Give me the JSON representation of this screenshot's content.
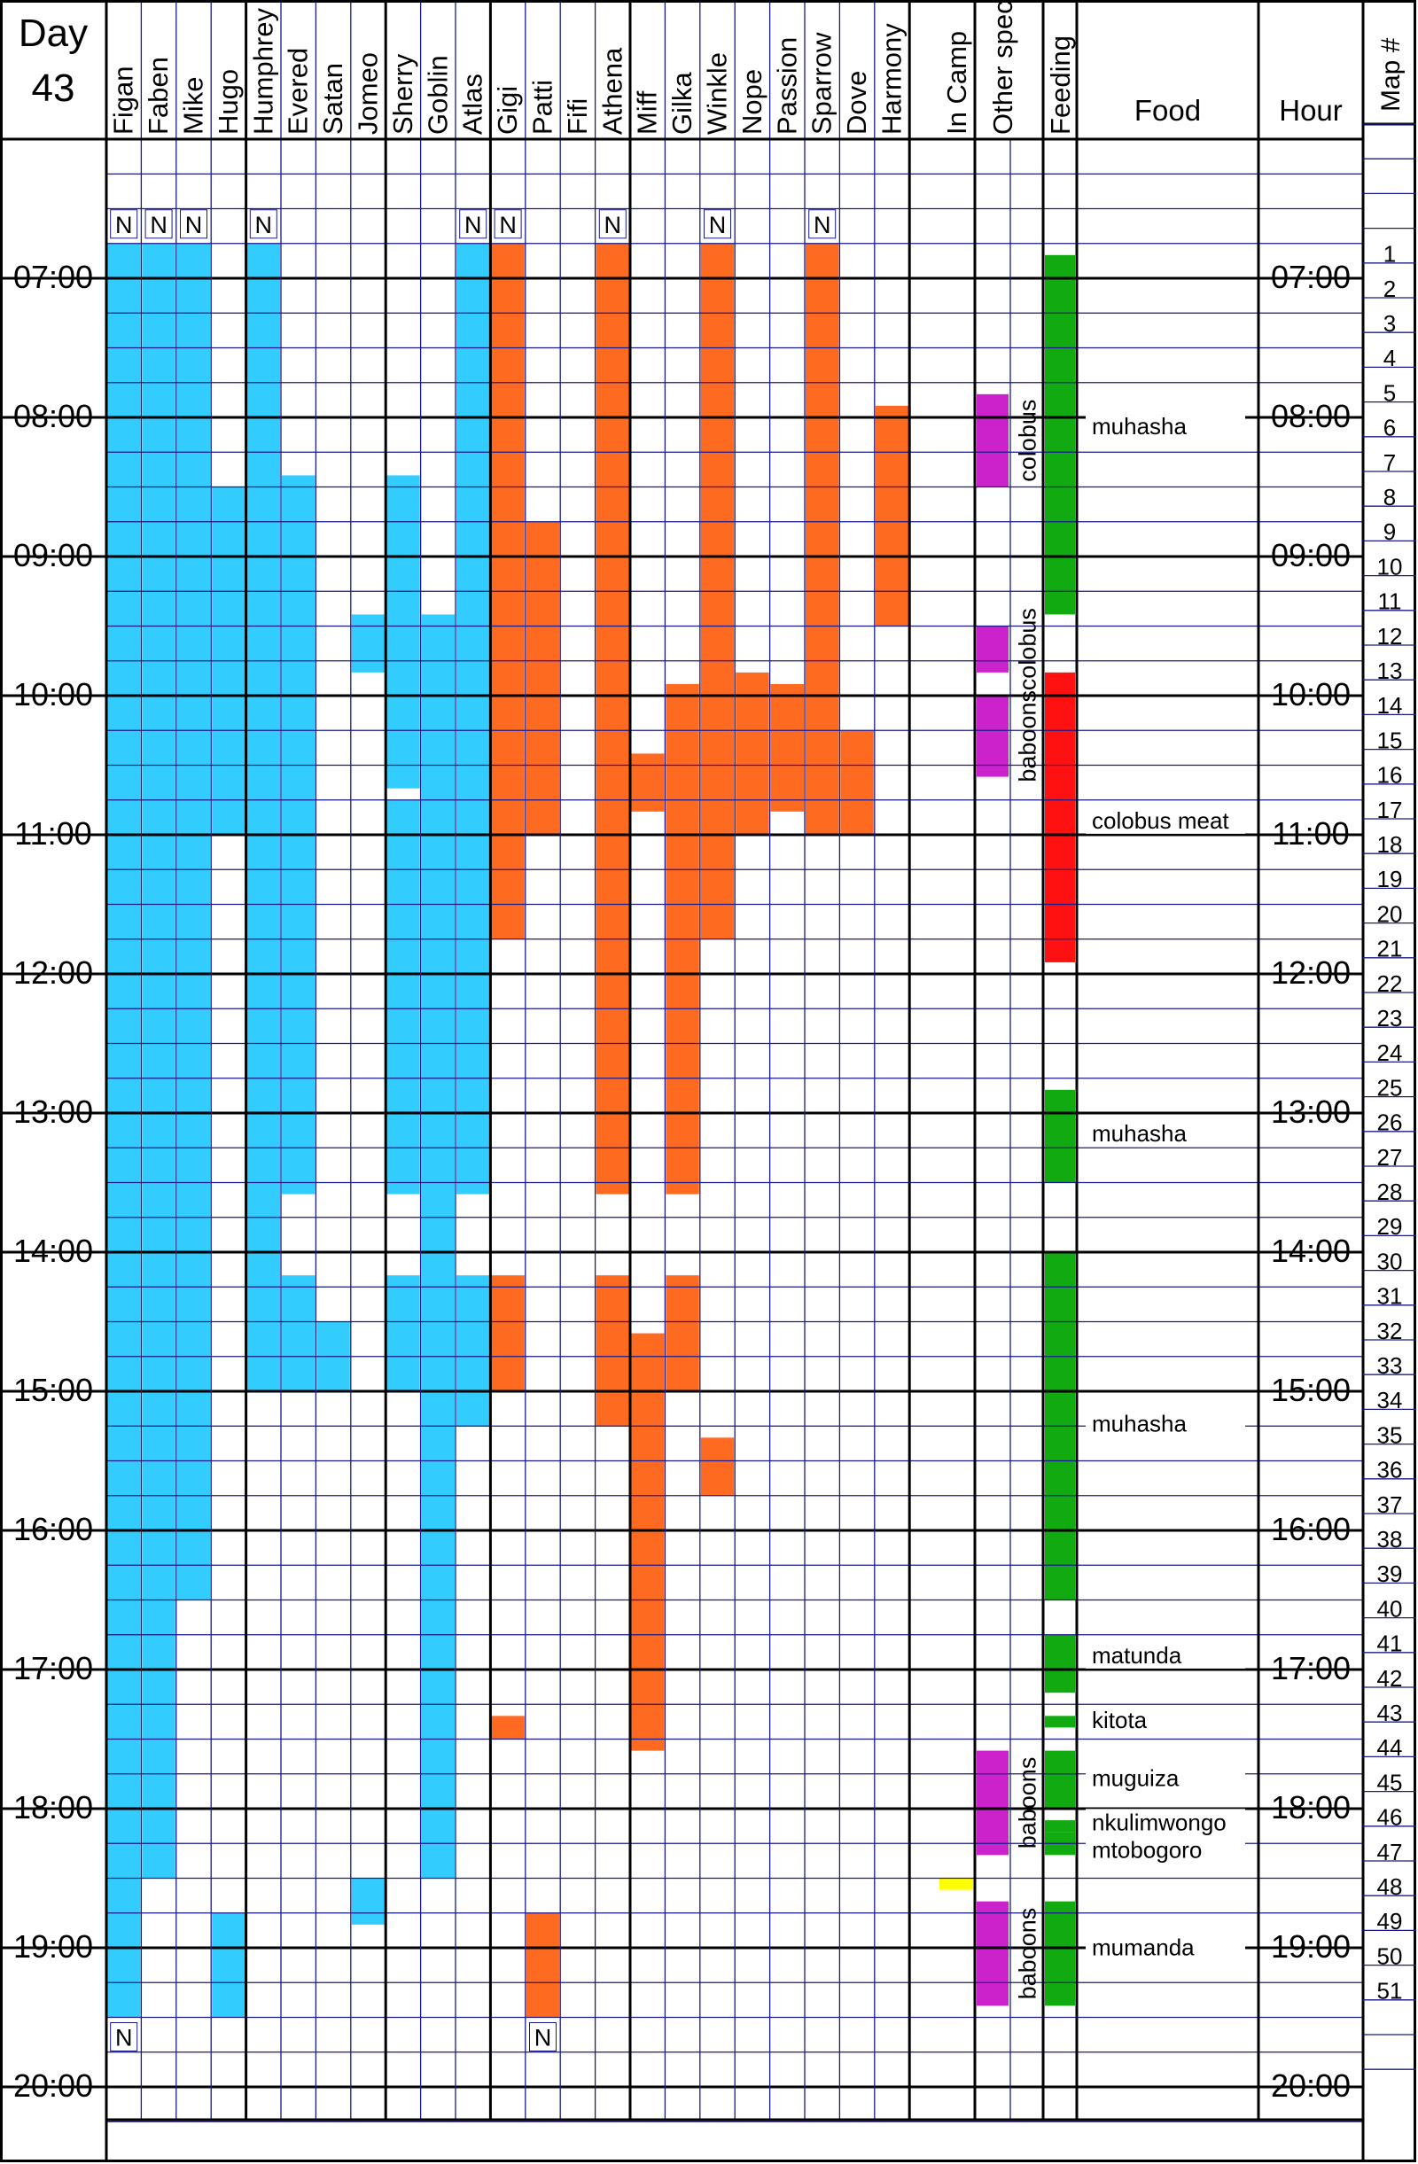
{
  "chart_data": {
    "type": "timeline",
    "day_label": "Day",
    "day_number": "43",
    "time_axis": {
      "start": "06:00",
      "end": "20:15",
      "row_minutes": 15
    },
    "hour_labels": [
      "07:00",
      "08:00",
      "09:00",
      "10:00",
      "11:00",
      "12:00",
      "13:00",
      "14:00",
      "15:00",
      "16:00",
      "17:00",
      "18:00",
      "19:00",
      "20:00"
    ],
    "column_headers": {
      "in_camp": "In Camp",
      "other_species": "Other species",
      "feeding": "Feeding",
      "food": "Food",
      "hour": "Hour",
      "map": "Map #"
    },
    "colors": {
      "male_presence": "#33ccff",
      "female_presence": "#ff6a21",
      "other_species": "#cc22cc",
      "feeding_plant": "#11aa11",
      "feeding_meat": "#ff1111",
      "in_camp": "#ffff00",
      "grid_line": "#1a1a8c"
    },
    "groups": [
      {
        "chimps": [
          {
            "name": "Figan",
            "sex": "male",
            "nest_start": true,
            "nest_end": true,
            "intervals": [
              [
                "06:45",
                "19:30"
              ]
            ]
          },
          {
            "name": "Faben",
            "sex": "male",
            "nest_start": true,
            "nest_end": false,
            "intervals": [
              [
                "06:45",
                "18:30"
              ]
            ]
          },
          {
            "name": "Mike",
            "sex": "male",
            "nest_start": true,
            "nest_end": false,
            "intervals": [
              [
                "06:45",
                "16:30"
              ]
            ]
          },
          {
            "name": "Hugo",
            "sex": "male",
            "nest_start": false,
            "nest_end": false,
            "intervals": [
              [
                "08:30",
                "11:00"
              ],
              [
                "18:45",
                "19:30"
              ]
            ]
          }
        ]
      },
      {
        "chimps": [
          {
            "name": "Humphrey",
            "sex": "male",
            "nest_start": true,
            "nest_end": false,
            "intervals": [
              [
                "06:45",
                "15:00"
              ]
            ]
          },
          {
            "name": "Evered",
            "sex": "male",
            "nest_start": false,
            "nest_end": false,
            "intervals": [
              [
                "08:25",
                "13:35"
              ],
              [
                "14:10",
                "15:00"
              ]
            ]
          },
          {
            "name": "Satan",
            "sex": "male",
            "nest_start": false,
            "nest_end": false,
            "intervals": [
              [
                "14:30",
                "15:00"
              ]
            ]
          },
          {
            "name": "Jomeo",
            "sex": "male",
            "nest_start": false,
            "nest_end": false,
            "intervals": [
              [
                "09:25",
                "09:50"
              ],
              [
                "18:30",
                "18:50"
              ]
            ]
          }
        ]
      },
      {
        "chimps": [
          {
            "name": "Sherry",
            "sex": "male",
            "nest_start": false,
            "nest_end": false,
            "intervals": [
              [
                "08:25",
                "10:40"
              ],
              [
                "10:45",
                "13:35"
              ],
              [
                "14:10",
                "15:00"
              ]
            ]
          },
          {
            "name": "Goblin",
            "sex": "male",
            "nest_start": false,
            "nest_end": false,
            "intervals": [
              [
                "09:25",
                "18:30"
              ]
            ]
          },
          {
            "name": "Atlas",
            "sex": "male",
            "nest_start": true,
            "nest_end": false,
            "intervals": [
              [
                "06:45",
                "13:35"
              ],
              [
                "14:10",
                "15:15"
              ]
            ]
          }
        ]
      },
      {
        "chimps": [
          {
            "name": "Gigi",
            "sex": "female",
            "nest_start": true,
            "nest_end": false,
            "intervals": [
              [
                "06:45",
                "11:45"
              ],
              [
                "14:10",
                "15:00"
              ],
              [
                "17:20",
                "17:30"
              ]
            ]
          },
          {
            "name": "Patti",
            "sex": "female",
            "nest_start": false,
            "nest_end": true,
            "intervals": [
              [
                "08:45",
                "11:00"
              ],
              [
                "18:45",
                "19:30"
              ]
            ]
          },
          {
            "name": "Fifi",
            "sex": "female",
            "nest_start": false,
            "nest_end": false,
            "intervals": []
          },
          {
            "name": "Athena",
            "sex": "female",
            "nest_start": true,
            "nest_end": false,
            "intervals": [
              [
                "06:45",
                "13:35"
              ],
              [
                "14:10",
                "15:15"
              ]
            ]
          }
        ]
      },
      {
        "chimps": [
          {
            "name": "Miff",
            "sex": "female",
            "nest_start": false,
            "nest_end": false,
            "intervals": [
              [
                "10:25",
                "10:50"
              ],
              [
                "14:35",
                "17:35"
              ]
            ]
          },
          {
            "name": "Gilka",
            "sex": "female",
            "nest_start": false,
            "nest_end": false,
            "intervals": [
              [
                "09:55",
                "13:35"
              ],
              [
                "14:10",
                "15:00"
              ]
            ]
          },
          {
            "name": "Winkle",
            "sex": "female",
            "nest_start": true,
            "nest_end": false,
            "intervals": [
              [
                "06:45",
                "11:45"
              ],
              [
                "15:20",
                "15:45"
              ]
            ]
          },
          {
            "name": "Nope",
            "sex": "female",
            "nest_start": false,
            "nest_end": false,
            "intervals": [
              [
                "09:50",
                "11:00"
              ]
            ]
          },
          {
            "name": "Passion",
            "sex": "female",
            "nest_start": false,
            "nest_end": false,
            "intervals": [
              [
                "09:55",
                "10:50"
              ]
            ]
          },
          {
            "name": "Sparrow",
            "sex": "female",
            "nest_start": true,
            "nest_end": false,
            "intervals": [
              [
                "06:45",
                "11:00"
              ]
            ]
          },
          {
            "name": "Dove",
            "sex": "female",
            "nest_start": false,
            "nest_end": false,
            "intervals": [
              [
                "10:15",
                "11:00"
              ]
            ]
          },
          {
            "name": "Harmony",
            "sex": "female",
            "nest_start": false,
            "nest_end": false,
            "intervals": [
              [
                "07:55",
                "09:30"
              ]
            ]
          }
        ]
      }
    ],
    "nest_marker": "N",
    "in_camp": [
      [
        "18:30",
        "18:35"
      ]
    ],
    "other_species": [
      {
        "label": "colobus",
        "start": "07:50",
        "end": "08:30"
      },
      {
        "label": "colobus",
        "start": "09:30",
        "end": "09:50"
      },
      {
        "label": "baboons",
        "start": "10:00",
        "end": "10:35"
      },
      {
        "label": "baboons",
        "start": "17:35",
        "end": "18:20"
      },
      {
        "label": "baboons",
        "start": "18:40",
        "end": "19:25"
      }
    ],
    "feeding": [
      {
        "start": "06:50",
        "end": "09:25",
        "kind": "plant"
      },
      {
        "start": "09:50",
        "end": "11:55",
        "kind": "meat"
      },
      {
        "start": "12:50",
        "end": "13:30",
        "kind": "plant"
      },
      {
        "start": "14:00",
        "end": "16:30",
        "kind": "plant"
      },
      {
        "start": "16:45",
        "end": "17:10",
        "kind": "plant"
      },
      {
        "start": "17:20",
        "end": "17:25",
        "kind": "plant"
      },
      {
        "start": "17:35",
        "end": "18:00",
        "kind": "plant"
      },
      {
        "start": "18:05",
        "end": "18:10",
        "kind": "plant"
      },
      {
        "start": "18:10",
        "end": "18:15",
        "kind": "plant"
      },
      {
        "start": "18:15",
        "end": "18:20",
        "kind": "plant"
      },
      {
        "start": "18:40",
        "end": "19:25",
        "kind": "plant"
      }
    ],
    "food_labels": [
      {
        "text": "muhasha",
        "time": "08:05"
      },
      {
        "text": "colobus meat",
        "time": "10:55"
      },
      {
        "text": "muhasha",
        "time": "13:10"
      },
      {
        "text": "muhasha",
        "time": "15:15"
      },
      {
        "text": "matunda",
        "time": "16:55"
      },
      {
        "text": "kitota",
        "time": "17:23"
      },
      {
        "text": "muguiza",
        "time": "17:48"
      },
      {
        "text": "nkulimwongo",
        "time": "18:07"
      },
      {
        "text": "mtobogoro",
        "time": "18:19"
      },
      {
        "text": "mumanda",
        "time": "19:01"
      }
    ],
    "map_numbers": [
      "1",
      "2",
      "3",
      "4",
      "5",
      "6",
      "7",
      "8",
      "9",
      "10",
      "11",
      "12",
      "13",
      "14",
      "15",
      "16",
      "17",
      "18",
      "19",
      "20",
      "21",
      "22",
      "23",
      "24",
      "25",
      "26",
      "27",
      "28",
      "29",
      "30",
      "31",
      "32",
      "33",
      "34",
      "35",
      "36",
      "37",
      "38",
      "39",
      "40",
      "41",
      "42",
      "43",
      "44",
      "45",
      "46",
      "47",
      "48",
      "49",
      "50",
      "51"
    ],
    "map_first_time": "06:45"
  }
}
